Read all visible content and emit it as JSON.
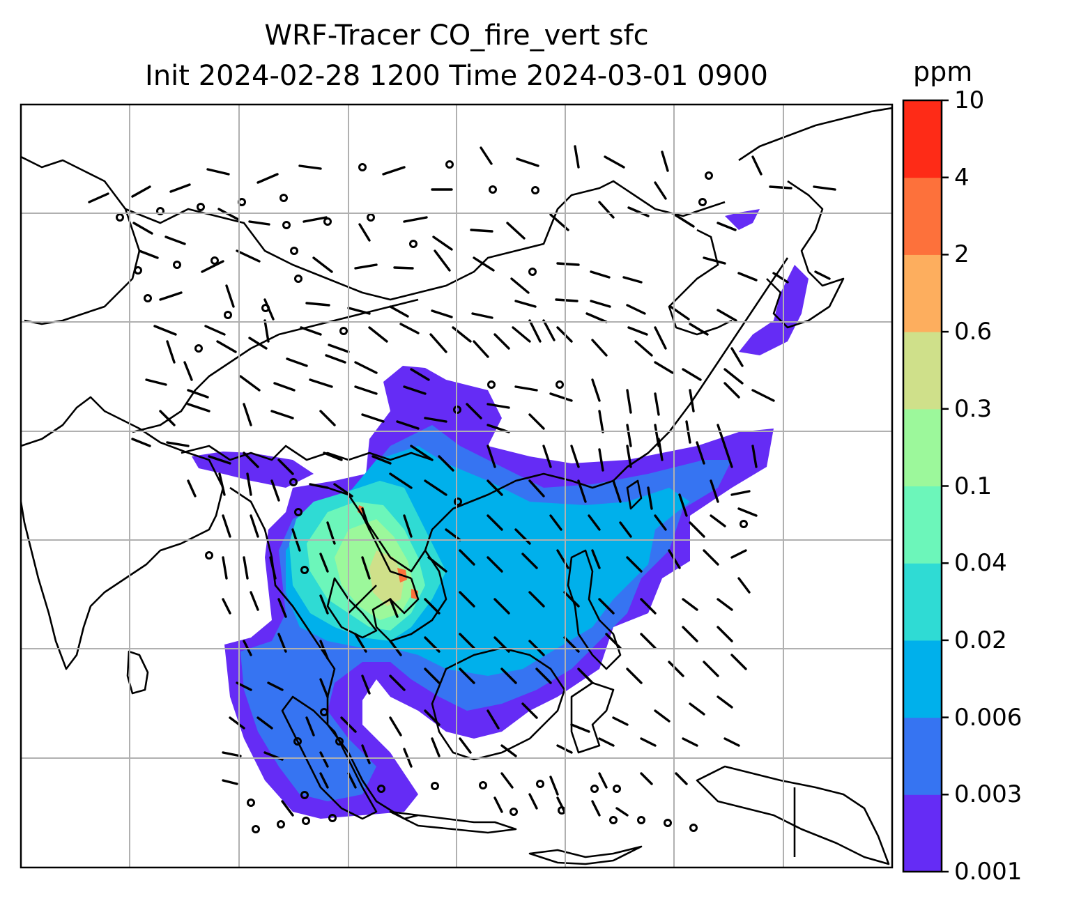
{
  "title": {
    "line1": "WRF-Tracer CO_fire_vert sfc",
    "line2": "Init 2024-02-28 1200 Time 2024-03-01 0900"
  },
  "colorbar": {
    "unit": "ppm",
    "tick_labels": [
      "0.001",
      "0.003",
      "0.006",
      "0.02",
      "0.04",
      "0.1",
      "0.3",
      "0.6",
      "2",
      "4",
      "10"
    ],
    "colors": [
      "#652cf5",
      "#3674f2",
      "#00b0eb",
      "#2fdbd4",
      "#6cf6ba",
      "#9cf89b",
      "#cfe08a",
      "#fdae5e",
      "#fd713b",
      "#fe2b17"
    ]
  },
  "map": {
    "projection": "regional",
    "gridlines": true,
    "coastlines": true,
    "wind_barbs": true,
    "calm_marker": "circle",
    "plume_colors_used": [
      "#652cf5",
      "#3674f2",
      "#00b0eb",
      "#2fdbd4",
      "#6cf6ba",
      "#9cf89b",
      "#cfe08a",
      "#fd713b"
    ]
  }
}
